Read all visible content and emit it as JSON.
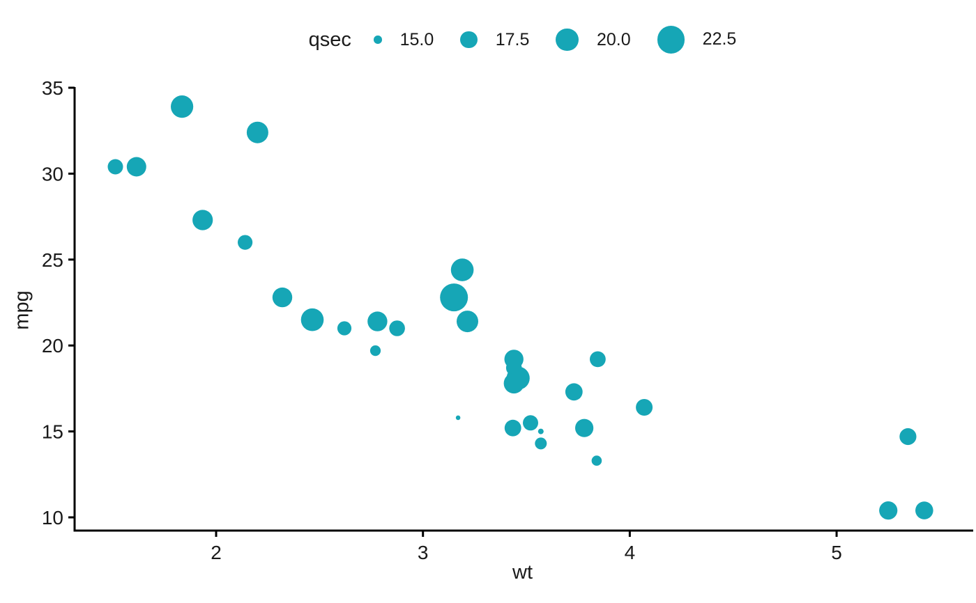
{
  "chart_data": {
    "type": "scatter",
    "title": "",
    "xlabel": "wt",
    "ylabel": "mpg",
    "xlim": [
      1.3157,
      5.647
    ],
    "ylim": [
      9.23,
      35.04
    ],
    "xticks": [
      2,
      3,
      4,
      5
    ],
    "xtick_labels": [
      "2",
      "3",
      "4",
      "5"
    ],
    "yticks": [
      10,
      15,
      20,
      25,
      30,
      35
    ],
    "ytick_labels": [
      "10",
      "15",
      "20",
      "25",
      "30",
      "35"
    ],
    "grid": false,
    "point_color": "#16a6b6",
    "axis_color": "#000000",
    "legend": {
      "title": "qsec",
      "position": "top",
      "breaks": [
        15.0,
        17.5,
        20.0,
        22.5
      ],
      "labels": [
        "15.0",
        "17.5",
        "20.0",
        "22.5"
      ]
    },
    "size_domain": [
      14.5,
      22.9
    ],
    "points": [
      {
        "wt": 2.62,
        "mpg": 21.0,
        "qsec": 16.46
      },
      {
        "wt": 2.875,
        "mpg": 21.0,
        "qsec": 17.02
      },
      {
        "wt": 2.32,
        "mpg": 22.8,
        "qsec": 18.61
      },
      {
        "wt": 3.215,
        "mpg": 21.4,
        "qsec": 19.44
      },
      {
        "wt": 3.44,
        "mpg": 18.7,
        "qsec": 17.02
      },
      {
        "wt": 3.46,
        "mpg": 18.1,
        "qsec": 20.22
      },
      {
        "wt": 3.57,
        "mpg": 14.3,
        "qsec": 15.84
      },
      {
        "wt": 3.19,
        "mpg": 24.4,
        "qsec": 20.0
      },
      {
        "wt": 3.15,
        "mpg": 22.8,
        "qsec": 22.9
      },
      {
        "wt": 3.44,
        "mpg": 19.2,
        "qsec": 18.3
      },
      {
        "wt": 3.44,
        "mpg": 17.8,
        "qsec": 18.9
      },
      {
        "wt": 4.07,
        "mpg": 16.4,
        "qsec": 17.4
      },
      {
        "wt": 3.73,
        "mpg": 17.3,
        "qsec": 17.6
      },
      {
        "wt": 3.78,
        "mpg": 15.2,
        "qsec": 18.0
      },
      {
        "wt": 5.25,
        "mpg": 10.4,
        "qsec": 17.98
      },
      {
        "wt": 5.424,
        "mpg": 10.4,
        "qsec": 17.82
      },
      {
        "wt": 5.345,
        "mpg": 14.7,
        "qsec": 17.42
      },
      {
        "wt": 2.2,
        "mpg": 32.4,
        "qsec": 19.47
      },
      {
        "wt": 1.615,
        "mpg": 30.4,
        "qsec": 18.52
      },
      {
        "wt": 1.835,
        "mpg": 33.9,
        "qsec": 19.9
      },
      {
        "wt": 2.465,
        "mpg": 21.5,
        "qsec": 20.01
      },
      {
        "wt": 3.52,
        "mpg": 15.5,
        "qsec": 16.87
      },
      {
        "wt": 3.435,
        "mpg": 15.2,
        "qsec": 17.3
      },
      {
        "wt": 3.84,
        "mpg": 13.3,
        "qsec": 15.41
      },
      {
        "wt": 3.845,
        "mpg": 19.2,
        "qsec": 17.05
      },
      {
        "wt": 1.935,
        "mpg": 27.3,
        "qsec": 18.9
      },
      {
        "wt": 2.14,
        "mpg": 26.0,
        "qsec": 16.7
      },
      {
        "wt": 1.513,
        "mpg": 30.4,
        "qsec": 16.9
      },
      {
        "wt": 3.17,
        "mpg": 15.8,
        "qsec": 14.5
      },
      {
        "wt": 2.77,
        "mpg": 19.7,
        "qsec": 15.5
      },
      {
        "wt": 3.57,
        "mpg": 15.0,
        "qsec": 14.6
      },
      {
        "wt": 2.78,
        "mpg": 21.4,
        "qsec": 18.6
      }
    ]
  }
}
